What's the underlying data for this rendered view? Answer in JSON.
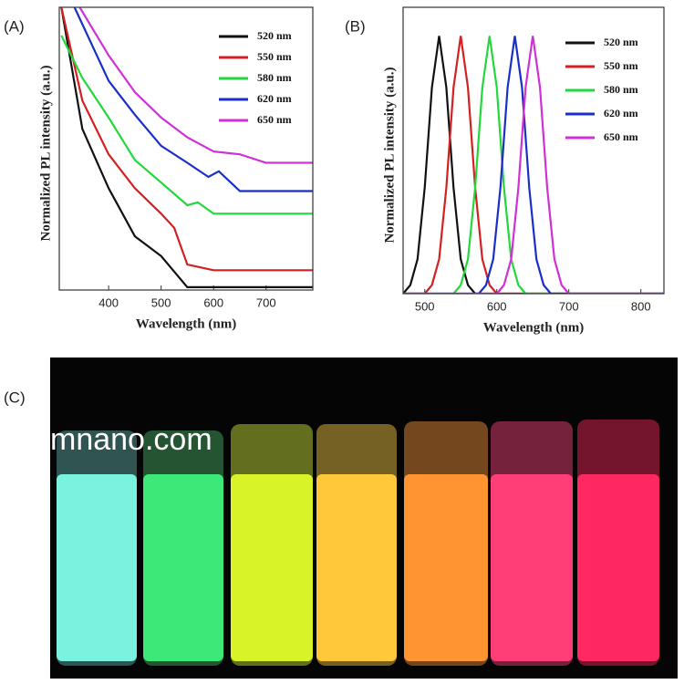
{
  "chart_data": [
    {
      "type": "line",
      "panel_label": "(A)",
      "ylabel": "Normalized PL intensity (a.u.)",
      "xlabel": "Wavelength (nm)",
      "xlim": [
        306,
        789
      ],
      "xticks": [
        400,
        500,
        600,
        700
      ],
      "ylim": [
        0,
        1
      ],
      "legend": "upper right",
      "series": [
        {
          "name": "520 nm",
          "color": "#111111",
          "x": [
            310,
            350,
            400,
            450,
            500,
            550,
            600,
            650,
            700,
            789
          ],
          "values": [
            1.0,
            0.57,
            0.36,
            0.19,
            0.12,
            0.01,
            0.01,
            0.01,
            0.01,
            0.01
          ]
        },
        {
          "name": "550 nm",
          "color": "#d42020",
          "x": [
            310,
            350,
            400,
            450,
            500,
            525,
            550,
            600,
            700,
            789
          ],
          "values": [
            1.0,
            0.67,
            0.48,
            0.36,
            0.27,
            0.22,
            0.09,
            0.07,
            0.07,
            0.07
          ]
        },
        {
          "name": "580 nm",
          "color": "#22d83a",
          "x": [
            310,
            350,
            400,
            450,
            500,
            550,
            570,
            600,
            700,
            789
          ],
          "values": [
            0.9,
            0.75,
            0.61,
            0.46,
            0.38,
            0.3,
            0.31,
            0.27,
            0.27,
            0.27
          ]
        },
        {
          "name": "620 nm",
          "color": "#1a2fc8",
          "x": [
            335,
            400,
            450,
            500,
            550,
            590,
            610,
            650,
            700,
            789
          ],
          "values": [
            1.0,
            0.74,
            0.62,
            0.51,
            0.45,
            0.4,
            0.42,
            0.35,
            0.35,
            0.35
          ]
        },
        {
          "name": "650 nm",
          "color": "#d030d8",
          "x": [
            345,
            400,
            450,
            500,
            550,
            600,
            650,
            700,
            789
          ],
          "values": [
            1.0,
            0.83,
            0.7,
            0.61,
            0.54,
            0.49,
            0.48,
            0.45,
            0.45
          ]
        }
      ]
    },
    {
      "type": "line",
      "panel_label": "(B)",
      "ylabel": "Normalized PL intensity (a.u.)",
      "xlabel": "Wavelength (nm)",
      "xlim": [
        470,
        832
      ],
      "xticks": [
        500,
        600,
        700,
        800
      ],
      "ylim": [
        0,
        1
      ],
      "legend": "upper right",
      "series": [
        {
          "name": "520 nm",
          "color": "#111111",
          "x": [
            470,
            480,
            490,
            500,
            510,
            520,
            530,
            540,
            550,
            560,
            570,
            832
          ],
          "values": [
            0,
            0.03,
            0.12,
            0.37,
            0.72,
            0.9,
            0.72,
            0.37,
            0.12,
            0.03,
            0,
            0
          ]
        },
        {
          "name": "550 nm",
          "color": "#d42020",
          "x": [
            470,
            500,
            510,
            520,
            530,
            540,
            550,
            560,
            570,
            580,
            590,
            600,
            832
          ],
          "values": [
            0,
            0,
            0.03,
            0.12,
            0.37,
            0.72,
            0.9,
            0.72,
            0.37,
            0.12,
            0.03,
            0,
            0
          ]
        },
        {
          "name": "580 nm",
          "color": "#22d83a",
          "x": [
            470,
            540,
            550,
            560,
            570,
            580,
            590,
            600,
            610,
            620,
            630,
            640,
            832
          ],
          "values": [
            0,
            0,
            0.03,
            0.12,
            0.37,
            0.72,
            0.9,
            0.72,
            0.37,
            0.12,
            0.03,
            0,
            0
          ]
        },
        {
          "name": "620 nm",
          "color": "#1a2fc8",
          "x": [
            470,
            575,
            585,
            595,
            605,
            615,
            625,
            635,
            645,
            655,
            665,
            675,
            832
          ],
          "values": [
            0,
            0,
            0.03,
            0.12,
            0.37,
            0.72,
            0.9,
            0.72,
            0.37,
            0.12,
            0.03,
            0,
            0
          ]
        },
        {
          "name": "650 nm",
          "color": "#d030d8",
          "x": [
            470,
            600,
            610,
            620,
            630,
            640,
            650,
            660,
            670,
            680,
            690,
            700,
            832
          ],
          "values": [
            0,
            0,
            0.03,
            0.12,
            0.37,
            0.72,
            0.9,
            0.72,
            0.37,
            0.12,
            0.03,
            0,
            0
          ]
        }
      ]
    }
  ],
  "photo": {
    "panel_label": "(C)",
    "watermark": "mnano.com"
  }
}
